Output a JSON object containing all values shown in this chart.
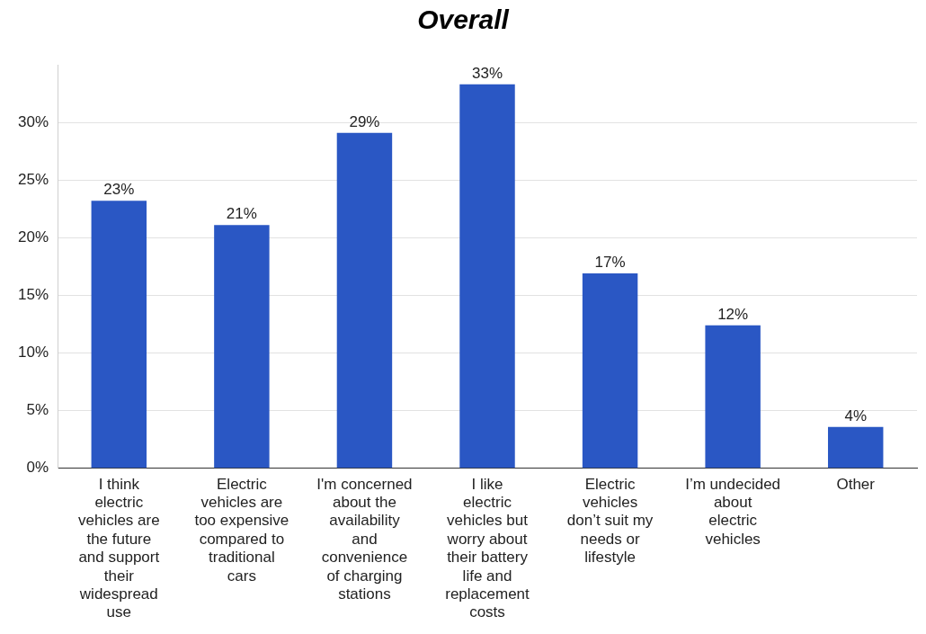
{
  "chart_data": {
    "type": "bar",
    "title": "Overall",
    "categories": [
      "I think electric vehicles are the future and support their widespread use",
      "Electric vehicles are too expensive compared to traditional cars",
      "I'm concerned about the availability and convenience of charging stations",
      "I like electric vehicles but worry about their battery life and replacement costs",
      "Electric vehicles don’t suit my needs or lifestyle",
      "I’m undecided about electric vehicles",
      "Other"
    ],
    "values": [
      23.2,
      21.1,
      29.1,
      33.3,
      16.9,
      12.4,
      3.6
    ],
    "value_labels": [
      "23%",
      "21%",
      "29%",
      "33%",
      "17%",
      "12%",
      "4%"
    ],
    "color": "#2a57c4",
    "ylim": [
      0,
      35
    ],
    "yticks": [
      {
        "value": 0,
        "label": "0%"
      },
      {
        "value": 5,
        "label": "5%"
      },
      {
        "value": 10,
        "label": "10%"
      },
      {
        "value": 15,
        "label": "15%"
      },
      {
        "value": 20,
        "label": "20%"
      },
      {
        "value": 25,
        "label": "25%"
      },
      {
        "value": 30,
        "label": "30%"
      }
    ],
    "grid": "y",
    "legend": false
  }
}
